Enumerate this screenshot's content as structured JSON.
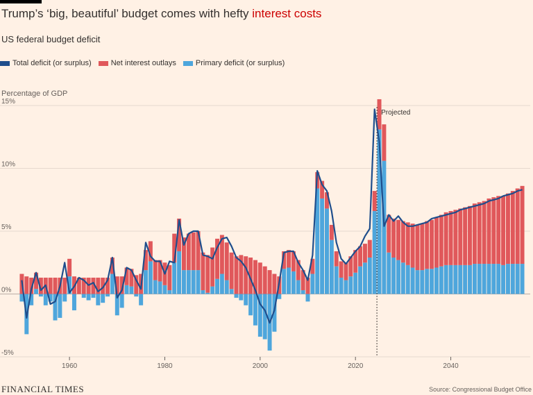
{
  "header": {
    "title_main": "Trump’s ‘big, beautiful’ budget comes with hefty ",
    "title_highlight": "interest costs",
    "subtitle": "US federal budget deficit",
    "y_unit": "Percentage of GDP"
  },
  "legend": [
    {
      "label": "Total deficit (or surplus)",
      "color": "#1f4e8c"
    },
    {
      "label": "Net interest outlays",
      "color": "#e0585b"
    },
    {
      "label": "Primary deficit (or surplus)",
      "color": "#4ea6dc"
    }
  ],
  "footer": {
    "brand": "FINANCIAL TIMES",
    "source": "Source: Congressional Budget Office"
  },
  "chart_data": {
    "type": "bar",
    "title": "US federal budget deficit",
    "ylabel": "Percentage of GDP",
    "xlabel": "",
    "xlim": [
      1949.5,
      2055.5
    ],
    "ylim": [
      -5,
      15
    ],
    "yticks": [
      -5,
      0,
      5,
      10,
      15
    ],
    "ytick_labels": [
      "-5%",
      "0%",
      "5%",
      "10%",
      "15%"
    ],
    "xticks": [
      1960,
      1980,
      2000,
      2020,
      2040
    ],
    "projected_from": 2024,
    "projected_label": "Projected",
    "first_year": 1950,
    "series": [
      {
        "name": "Net interest outlays",
        "stacked": true,
        "values": [
          1.6,
          1.4,
          1.3,
          1.3,
          1.3,
          1.3,
          1.3,
          1.3,
          1.3,
          1.3,
          1.4,
          1.4,
          1.3,
          1.3,
          1.3,
          1.3,
          1.3,
          1.3,
          1.3,
          1.3,
          1.4,
          1.4,
          1.4,
          1.4,
          1.5,
          1.6,
          1.6,
          1.6,
          1.6,
          1.7,
          1.8,
          2.0,
          2.3,
          2.6,
          2.6,
          2.9,
          3.0,
          3.1,
          3.0,
          3.0,
          3.1,
          3.2,
          3.1,
          3.0,
          2.9,
          3.0,
          3.1,
          3.0,
          2.9,
          2.7,
          2.5,
          2.2,
          1.9,
          1.6,
          1.4,
          1.4,
          1.4,
          1.6,
          1.6,
          1.6,
          1.3,
          1.2,
          1.3,
          1.4,
          1.3,
          1.2,
          1.2,
          1.3,
          1.4,
          1.6,
          1.8,
          1.6,
          1.5,
          1.4,
          1.6,
          2.4,
          2.9,
          3.0,
          3.1,
          3.2,
          3.3,
          3.4,
          3.5,
          3.6,
          3.7,
          3.8,
          3.9,
          4.0,
          4.1,
          4.2,
          4.3,
          4.4,
          4.5,
          4.6,
          4.7,
          4.8,
          4.9,
          5.0,
          5.2,
          5.3,
          5.4,
          5.5,
          5.6,
          5.8,
          6.0,
          6.2
        ]
      },
      {
        "name": "Primary deficit (or surplus)",
        "stacked": true,
        "values": [
          -0.6,
          -3.2,
          -0.9,
          0.4,
          -0.2,
          -0.9,
          -0.6,
          -2.1,
          -1.9,
          -0.6,
          1.4,
          -1.3,
          0.0,
          -0.3,
          -0.5,
          -0.3,
          -0.9,
          -0.7,
          -0.2,
          1.6,
          -1.7,
          -1.1,
          0.7,
          0.6,
          -0.2,
          -0.9,
          1.9,
          2.6,
          1.1,
          1.0,
          0.7,
          0.3,
          2.5,
          3.4,
          1.9,
          1.9,
          1.9,
          1.9,
          0.3,
          0.1,
          0.6,
          1.2,
          1.6,
          1.1,
          0.4,
          -0.3,
          -0.5,
          -0.9,
          -1.7,
          -2.5,
          -3.4,
          -3.6,
          -4.5,
          -3.0,
          -0.4,
          2.0,
          2.1,
          1.8,
          1.1,
          0.3,
          -0.6,
          1.6,
          8.4,
          7.6,
          6.8,
          4.3,
          2.2,
          1.3,
          1.1,
          1.4,
          1.7,
          2.2,
          2.5,
          2.9,
          6.6,
          13.1,
          10.6,
          3.3,
          2.9,
          2.7,
          2.5,
          2.3,
          2.1,
          1.9,
          1.9,
          2.0,
          2.0,
          2.1,
          2.2,
          2.3,
          2.3,
          2.3,
          2.3,
          2.3,
          2.3,
          2.4,
          2.4,
          2.4,
          2.4,
          2.4,
          2.4,
          2.3,
          2.4,
          2.4,
          2.4,
          2.4
        ]
      },
      {
        "name": "Total deficit (or surplus)",
        "type": "line",
        "values": [
          1.1,
          -1.9,
          0.4,
          1.7,
          0.3,
          0.7,
          -0.8,
          -0.6,
          0.6,
          2.5,
          0.1,
          0.6,
          1.3,
          1.1,
          0.7,
          0.9,
          0.2,
          0.5,
          1.1,
          2.9,
          -0.3,
          0.3,
          2.1,
          1.9,
          1.1,
          0.4,
          4.1,
          3.0,
          2.6,
          2.6,
          1.6,
          2.6,
          2.5,
          5.9,
          3.9,
          4.8,
          5.0,
          5.0,
          3.1,
          3.0,
          2.8,
          3.7,
          4.4,
          4.5,
          3.8,
          2.9,
          2.6,
          2.1,
          1.2,
          0.3,
          -0.8,
          -1.3,
          -2.3,
          -1.3,
          0.9,
          3.3,
          3.4,
          3.4,
          2.5,
          1.9,
          1.1,
          3.1,
          9.8,
          8.7,
          8.2,
          6.6,
          4.1,
          2.8,
          2.4,
          2.9,
          3.4,
          3.8,
          4.6,
          5.2,
          14.7,
          12.1,
          5.4,
          6.3,
          5.8,
          6.2,
          5.7,
          5.4,
          5.4,
          5.5,
          5.6,
          5.7,
          6.0,
          6.1,
          6.2,
          6.3,
          6.4,
          6.5,
          6.7,
          6.8,
          6.9,
          7.0,
          7.1,
          7.2,
          7.4,
          7.5,
          7.6,
          7.8,
          7.9,
          8.0,
          8.2,
          8.3
        ]
      }
    ]
  }
}
